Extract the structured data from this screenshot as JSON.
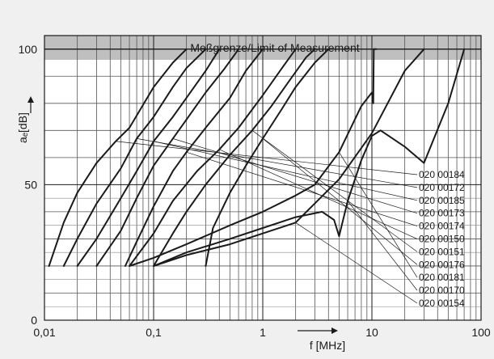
{
  "chart_data": {
    "type": "line",
    "banner": "Meßgrenze/Limit of Measurement",
    "xlabel": "f [MHz]",
    "ylabel": "aₑ[dB]",
    "x_scale": "log",
    "xlim": [
      0.01,
      100
    ],
    "ylim": [
      0,
      105
    ],
    "measurement_limit_db": 100,
    "x_tick_labels": [
      {
        "value": 0.01,
        "label": "0,01"
      },
      {
        "value": 0.1,
        "label": "0,1"
      },
      {
        "value": 1,
        "label": "1"
      },
      {
        "value": 10,
        "label": "10"
      },
      {
        "value": 100,
        "label": "100"
      }
    ],
    "y_tick_labels": [
      {
        "value": 0,
        "label": "0"
      },
      {
        "value": 50,
        "label": "50"
      },
      {
        "value": 100,
        "label": "100"
      }
    ],
    "grid": true,
    "series": [
      {
        "name": "020 00184",
        "x": [
          0.011,
          0.015,
          0.02,
          0.03,
          0.045,
          0.06,
          0.1,
          0.15,
          0.2
        ],
        "y": [
          20,
          36,
          47,
          58,
          66,
          71,
          86,
          95,
          100
        ]
      },
      {
        "name": "020 00172",
        "x": [
          0.015,
          0.02,
          0.03,
          0.05,
          0.07,
          0.1,
          0.15,
          0.2,
          0.3
        ],
        "y": [
          20,
          30,
          43,
          56,
          67,
          75,
          86,
          93,
          100
        ]
      },
      {
        "name": "020 00185",
        "x": [
          0.02,
          0.03,
          0.05,
          0.07,
          0.1,
          0.15,
          0.2,
          0.3,
          0.4
        ],
        "y": [
          20,
          30,
          45,
          55,
          66,
          75,
          82,
          92,
          100
        ]
      },
      {
        "name": "020 00173",
        "x": [
          0.03,
          0.05,
          0.07,
          0.1,
          0.15,
          0.2,
          0.3,
          0.45,
          0.6
        ],
        "y": [
          20,
          33,
          45,
          57,
          67,
          74,
          84,
          93,
          100
        ]
      },
      {
        "name": "020 00174",
        "x": [
          0.055,
          0.07,
          0.1,
          0.15,
          0.2,
          0.3,
          0.5,
          0.7,
          1.0
        ],
        "y": [
          20,
          29,
          42,
          55,
          62,
          71,
          82,
          92,
          100
        ]
      },
      {
        "name": "020 00150",
        "x": [
          0.06,
          0.1,
          0.15,
          0.25,
          0.4,
          0.6,
          1.0,
          1.5,
          2.0
        ],
        "y": [
          20,
          32,
          44,
          55,
          63,
          71,
          83,
          93,
          100
        ]
      },
      {
        "name": "020 00151",
        "x": [
          0.1,
          0.15,
          0.2,
          0.3,
          0.5,
          0.8,
          1.2,
          1.8,
          2.5,
          3.0
        ],
        "y": [
          20,
          32,
          40,
          50,
          61,
          70,
          79,
          89,
          97,
          100
        ]
      },
      {
        "name": "020 00176",
        "x": [
          0.3,
          0.35,
          0.5,
          0.7,
          1.0,
          1.5,
          2.0,
          3.0,
          4.0
        ],
        "y": [
          20,
          34,
          47,
          57,
          67,
          78,
          86,
          95,
          100
        ]
      },
      {
        "name": "020 00181",
        "x": [
          0.06,
          0.1,
          0.2,
          0.5,
          1.0,
          2.0,
          3.0,
          5.0,
          8.0,
          10.0,
          10.3,
          10.4,
          11.0
        ],
        "y": [
          20,
          23,
          28,
          35,
          40,
          46,
          50,
          62,
          79,
          84,
          80,
          100,
          100
        ]
      },
      {
        "name": "020 00170",
        "x": [
          0.1,
          0.2,
          0.5,
          1.0,
          2.0,
          3.5,
          4.5,
          5.0,
          6.0,
          8.0,
          10.0,
          12.0,
          20.0,
          30.0,
          50.0,
          70.0
        ],
        "y": [
          20,
          25,
          30,
          34,
          38,
          40,
          37,
          31,
          44,
          59,
          68,
          70,
          64,
          58,
          80,
          100
        ]
      },
      {
        "name": "020 00154",
        "x": [
          0.1,
          0.2,
          0.5,
          1.0,
          2.0,
          5.0,
          10.0,
          20.0,
          30.0
        ],
        "y": [
          20,
          24,
          28,
          32,
          36,
          52,
          69,
          92,
          100
        ]
      }
    ]
  }
}
